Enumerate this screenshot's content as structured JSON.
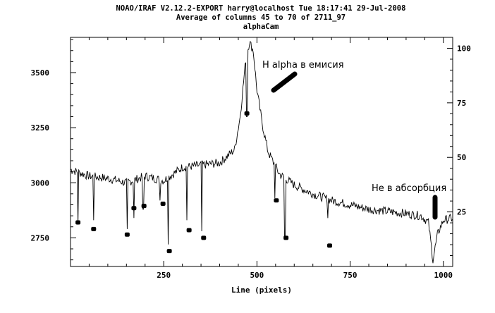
{
  "header": {
    "line1": "NOAO/IRAF V2.12.2-EXPORT harry@localhost Tue 18:17:41 29-Jul-2008",
    "line2": "Average of columns 45 to 70 of 2711_97",
    "line3": "alphaCam"
  },
  "chart_data": {
    "type": "line",
    "xlabel": "Line (pixels)",
    "ylabel": "",
    "xlim": [
      0,
      1025
    ],
    "ylim": [
      2620,
      3660
    ],
    "y2lim": [
      0,
      105
    ],
    "x_ticks": [
      250,
      500,
      750,
      1000
    ],
    "y_ticks": [
      2750,
      3000,
      3250,
      3500
    ],
    "y2_ticks": [
      25,
      50,
      75,
      100
    ],
    "grid": false,
    "spectrum": {
      "continuum": [
        [
          0,
          3060
        ],
        [
          50,
          3030
        ],
        [
          100,
          3020
        ],
        [
          150,
          3000
        ],
        [
          200,
          3030
        ],
        [
          250,
          3010
        ],
        [
          300,
          3070
        ],
        [
          350,
          3080
        ],
        [
          400,
          3090
        ],
        [
          440,
          3150
        ],
        [
          455,
          3300
        ],
        [
          470,
          3560
        ],
        [
          480,
          3640
        ],
        [
          490,
          3600
        ],
        [
          500,
          3420
        ],
        [
          515,
          3260
        ],
        [
          530,
          3140
        ],
        [
          560,
          3040
        ],
        [
          600,
          2990
        ],
        [
          650,
          2950
        ],
        [
          700,
          2920
        ],
        [
          750,
          2900
        ],
        [
          800,
          2880
        ],
        [
          850,
          2870
        ],
        [
          900,
          2860
        ],
        [
          940,
          2850
        ],
        [
          960,
          2820
        ],
        [
          972,
          2650
        ],
        [
          985,
          2770
        ],
        [
          1000,
          2830
        ],
        [
          1025,
          2840
        ]
      ],
      "absorption_dips": [
        [
          20,
          2810
        ],
        [
          62,
          2830
        ],
        [
          152,
          2790
        ],
        [
          170,
          2840
        ],
        [
          195,
          2880
        ],
        [
          240,
          2920
        ],
        [
          262,
          2720
        ],
        [
          312,
          2830
        ],
        [
          352,
          2780
        ],
        [
          473,
          3300
        ],
        [
          548,
          2930
        ],
        [
          575,
          2760
        ],
        [
          690,
          2840
        ]
      ]
    },
    "marker_points": [
      [
        20,
        2820
      ],
      [
        62,
        2790
      ],
      [
        152,
        2765
      ],
      [
        170,
        2885
      ],
      [
        197,
        2895
      ],
      [
        248,
        2905
      ],
      [
        265,
        2690
      ],
      [
        318,
        2785
      ],
      [
        357,
        2750
      ],
      [
        473,
        3315
      ],
      [
        552,
        2920
      ],
      [
        578,
        2750
      ],
      [
        695,
        2715
      ]
    ],
    "annotations": [
      {
        "text": "H alpha в емисия",
        "x": 510,
        "y": 3510
      },
      {
        "text": "He в абсорбция",
        "x": 810,
        "y": 2910
      }
    ]
  }
}
